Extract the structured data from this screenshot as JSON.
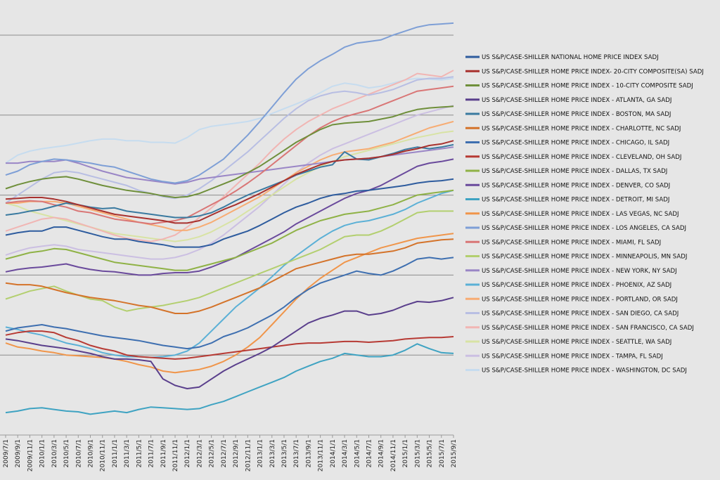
{
  "chart_data": {
    "type": "line",
    "title": "",
    "xlabel": "",
    "ylabel": "",
    "grid": true,
    "legend_placement": "right",
    "x_tick_labels": [
      "2009/7/1",
      "2009/9/1",
      "2009/11/1",
      "2010/1/1",
      "2010/3/1",
      "2010/5/1",
      "2010/7/1",
      "2010/9/1",
      "2010/11/1",
      "2011/1/1",
      "2011/3/1",
      "2011/5/1",
      "2011/7/1",
      "2011/9/1",
      "2011/11/1",
      "2012/1/1",
      "2012/3/1",
      "2012/5/1",
      "2012/7/1",
      "2012/9/1",
      "2012/11/1",
      "2013/1/1",
      "2013/3/1",
      "2013/5/1",
      "2013/7/1",
      "2013/9/1",
      "2013/11/1",
      "2014/1/1",
      "2014/3/1",
      "2014/5/1",
      "2014/7/1",
      "2014/9/1",
      "2014/11/1",
      "2015/1/1",
      "2015/3/1",
      "2015/5/1",
      "2015/7/1",
      "2015/9/1"
    ],
    "ylim": [
      0,
      5
    ],
    "y_gridlines": [
      0,
      1,
      2,
      3,
      4,
      5
    ],
    "series": [
      {
        "name": "US S&P/CASE-SHILLER NATIONAL HOME PRICE INDEX SADJ",
        "color": "#2e5c9e",
        "values": [
          2.5,
          2.53,
          2.55,
          2.55,
          2.6,
          2.6,
          2.56,
          2.52,
          2.48,
          2.45,
          2.45,
          2.42,
          2.4,
          2.38,
          2.35,
          2.35,
          2.35,
          2.38,
          2.45,
          2.5,
          2.55,
          2.62,
          2.7,
          2.78,
          2.85,
          2.9,
          2.96,
          3.0,
          3.02,
          3.05,
          3.06,
          3.08,
          3.1,
          3.12,
          3.15,
          3.17,
          3.18,
          3.2
        ]
      },
      {
        "name": "US S&P/CASE-SHILLER HOME PRICE INDEX- 20-CITY COMPOSITE(SA) SADJ",
        "color": "#a8312e",
        "values": [
          2.95,
          2.96,
          2.97,
          2.97,
          2.95,
          2.92,
          2.88,
          2.84,
          2.8,
          2.76,
          2.74,
          2.72,
          2.7,
          2.68,
          2.65,
          2.65,
          2.68,
          2.75,
          2.82,
          2.88,
          2.95,
          3.02,
          3.1,
          3.18,
          3.26,
          3.32,
          3.38,
          3.42,
          3.44,
          3.45,
          3.46,
          3.48,
          3.51,
          3.55,
          3.58,
          3.62,
          3.64,
          3.68
        ]
      },
      {
        "name": "US S&P/CASE-SHILLER HOME PRICE INDEX - 10-CITY COMPOSITE SADJ",
        "color": "#6f8f3b",
        "values": [
          3.08,
          3.13,
          3.17,
          3.2,
          3.22,
          3.23,
          3.2,
          3.16,
          3.12,
          3.09,
          3.06,
          3.04,
          3.02,
          2.99,
          2.97,
          2.98,
          3.02,
          3.08,
          3.14,
          3.2,
          3.28,
          3.36,
          3.46,
          3.56,
          3.66,
          3.74,
          3.82,
          3.88,
          3.9,
          3.91,
          3.92,
          3.95,
          3.98,
          4.03,
          4.07,
          4.09,
          4.1,
          4.11
        ]
      },
      {
        "name": "US S&P/CASE-SHILLER HOME PRICE INDEX - ATLANTA, GA SADJ",
        "color": "#5a3f8c",
        "values": [
          1.2,
          1.18,
          1.15,
          1.12,
          1.1,
          1.08,
          1.05,
          1.02,
          0.98,
          0.95,
          0.95,
          0.94,
          0.92,
          0.7,
          0.62,
          0.58,
          0.6,
          0.7,
          0.8,
          0.88,
          0.95,
          1.02,
          1.1,
          1.2,
          1.3,
          1.4,
          1.46,
          1.5,
          1.55,
          1.55,
          1.5,
          1.52,
          1.56,
          1.62,
          1.67,
          1.66,
          1.68,
          1.72
        ]
      },
      {
        "name": "US S&P/CASE-SHILLER HOME PRICE INDEX - BOSTON, MA SADJ",
        "color": "#3a7aa0",
        "values": [
          2.75,
          2.77,
          2.8,
          2.82,
          2.86,
          2.9,
          2.88,
          2.85,
          2.83,
          2.84,
          2.8,
          2.78,
          2.76,
          2.74,
          2.72,
          2.72,
          2.74,
          2.78,
          2.85,
          2.93,
          3.0,
          3.06,
          3.12,
          3.18,
          3.25,
          3.3,
          3.35,
          3.38,
          3.54,
          3.45,
          3.44,
          3.48,
          3.52,
          3.57,
          3.6,
          3.58,
          3.6,
          3.63
        ]
      },
      {
        "name": "US S&P/CASE-SHILLER HOME PRICE INDEX - CHARLOTTE, NC SADJ",
        "color": "#d4732a",
        "values": [
          1.9,
          1.88,
          1.88,
          1.86,
          1.82,
          1.78,
          1.75,
          1.72,
          1.7,
          1.68,
          1.65,
          1.62,
          1.6,
          1.56,
          1.52,
          1.52,
          1.55,
          1.6,
          1.66,
          1.72,
          1.78,
          1.84,
          1.92,
          2.0,
          2.08,
          2.12,
          2.16,
          2.2,
          2.24,
          2.26,
          2.26,
          2.28,
          2.3,
          2.34,
          2.4,
          2.42,
          2.44,
          2.45
        ]
      },
      {
        "name": "US S&P/CASE-SHILLER HOME PRICE INDEX - CHICAGO, IL SADJ",
        "color": "#3e6fb0",
        "values": [
          1.3,
          1.34,
          1.36,
          1.38,
          1.35,
          1.33,
          1.3,
          1.27,
          1.24,
          1.22,
          1.2,
          1.18,
          1.15,
          1.12,
          1.1,
          1.08,
          1.1,
          1.15,
          1.23,
          1.28,
          1.34,
          1.42,
          1.5,
          1.6,
          1.72,
          1.82,
          1.9,
          1.95,
          2.0,
          2.05,
          2.02,
          2.0,
          2.05,
          2.12,
          2.2,
          2.22,
          2.2,
          2.22
        ]
      },
      {
        "name": "US S&P/CASE-SHILLER HOME PRICE INDEX - CLEVELAND, OH SADJ",
        "color": "#b73a34",
        "values": [
          1.25,
          1.28,
          1.3,
          1.3,
          1.28,
          1.22,
          1.18,
          1.12,
          1.08,
          1.05,
          1.0,
          0.98,
          0.97,
          0.96,
          0.95,
          0.96,
          0.98,
          1.0,
          1.02,
          1.04,
          1.06,
          1.08,
          1.1,
          1.12,
          1.14,
          1.15,
          1.15,
          1.16,
          1.17,
          1.17,
          1.16,
          1.17,
          1.18,
          1.2,
          1.21,
          1.22,
          1.22,
          1.23
        ]
      },
      {
        "name": "US S&P/CASE-SHILLER HOME PRICE INDEX - DALLAS, TX SADJ",
        "color": "#8fb246",
        "values": [
          2.2,
          2.24,
          2.28,
          2.3,
          2.33,
          2.32,
          2.28,
          2.24,
          2.2,
          2.16,
          2.14,
          2.12,
          2.1,
          2.08,
          2.06,
          2.06,
          2.1,
          2.14,
          2.18,
          2.22,
          2.28,
          2.34,
          2.4,
          2.48,
          2.56,
          2.62,
          2.68,
          2.72,
          2.76,
          2.78,
          2.8,
          2.84,
          2.88,
          2.94,
          3.0,
          3.02,
          3.04,
          3.06
        ]
      },
      {
        "name": "US S&P/CASE-SHILLER HOME PRICE INDEX - DENVER, CO SADJ",
        "color": "#6a4a9c",
        "values": [
          2.04,
          2.07,
          2.09,
          2.1,
          2.12,
          2.14,
          2.1,
          2.07,
          2.05,
          2.04,
          2.02,
          2.0,
          2.0,
          2.02,
          2.03,
          2.03,
          2.05,
          2.1,
          2.16,
          2.22,
          2.3,
          2.38,
          2.46,
          2.54,
          2.64,
          2.72,
          2.8,
          2.88,
          2.96,
          3.02,
          3.06,
          3.12,
          3.2,
          3.28,
          3.36,
          3.4,
          3.42,
          3.45
        ]
      },
      {
        "name": "US S&P/CASE-SHILLER HOME PRICE INDEX - DETROIT, MI SADJ",
        "color": "#3fa3c2",
        "values": [
          0.28,
          0.3,
          0.33,
          0.34,
          0.32,
          0.3,
          0.29,
          0.26,
          0.28,
          0.3,
          0.28,
          0.32,
          0.35,
          0.34,
          0.33,
          0.32,
          0.33,
          0.38,
          0.42,
          0.48,
          0.54,
          0.6,
          0.66,
          0.72,
          0.8,
          0.86,
          0.92,
          0.96,
          1.02,
          1.0,
          0.98,
          0.98,
          1.0,
          1.06,
          1.14,
          1.08,
          1.03,
          1.02
        ]
      },
      {
        "name": "US S&P/CASE-SHILLER HOME PRICE INDEX - LAS VEGAS, NC SADJ",
        "color": "#f0954a",
        "values": [
          1.15,
          1.1,
          1.08,
          1.05,
          1.03,
          1.0,
          0.99,
          0.98,
          0.97,
          0.95,
          0.92,
          0.88,
          0.85,
          0.8,
          0.78,
          0.8,
          0.82,
          0.86,
          0.92,
          1.0,
          1.1,
          1.22,
          1.38,
          1.54,
          1.7,
          1.84,
          1.96,
          2.06,
          2.16,
          2.22,
          2.28,
          2.34,
          2.38,
          2.42,
          2.46,
          2.48,
          2.5,
          2.52
        ]
      },
      {
        "name": "US S&P/CASE-SHILLER HOME PRICE INDEX - LOS ANGELES, CA SADJ",
        "color": "#7e9fd6",
        "values": [
          3.25,
          3.3,
          3.38,
          3.42,
          3.45,
          3.44,
          3.42,
          3.4,
          3.37,
          3.35,
          3.3,
          3.25,
          3.2,
          3.17,
          3.15,
          3.18,
          3.25,
          3.35,
          3.45,
          3.6,
          3.75,
          3.92,
          4.1,
          4.28,
          4.45,
          4.58,
          4.68,
          4.76,
          4.85,
          4.9,
          4.92,
          4.94,
          5.0,
          5.05,
          5.1,
          5.13,
          5.14,
          5.15
        ]
      },
      {
        "name": "US S&P/CASE-SHILLER HOME PRICE INDEX - MIAMI, FL SADJ",
        "color": "#d97676",
        "values": [
          2.9,
          2.92,
          2.93,
          2.92,
          2.88,
          2.85,
          2.8,
          2.78,
          2.74,
          2.7,
          2.68,
          2.66,
          2.64,
          2.66,
          2.68,
          2.72,
          2.8,
          2.88,
          2.96,
          3.05,
          3.15,
          3.26,
          3.38,
          3.5,
          3.62,
          3.74,
          3.84,
          3.92,
          3.98,
          4.02,
          4.06,
          4.12,
          4.18,
          4.24,
          4.3,
          4.32,
          4.34,
          4.36
        ]
      },
      {
        "name": "US S&P/CASE-SHILLER HOME PRICE INDEX - MINNEAPOLIS, MN SADJ",
        "color": "#b3cf6f",
        "values": [
          1.7,
          1.75,
          1.8,
          1.83,
          1.86,
          1.8,
          1.75,
          1.7,
          1.68,
          1.6,
          1.55,
          1.58,
          1.6,
          1.62,
          1.65,
          1.68,
          1.72,
          1.78,
          1.84,
          1.9,
          1.96,
          2.02,
          2.08,
          2.14,
          2.2,
          2.26,
          2.32,
          2.4,
          2.48,
          2.5,
          2.5,
          2.55,
          2.62,
          2.7,
          2.78,
          2.8,
          2.8,
          2.8
        ]
      },
      {
        "name": "US S&P/CASE-SHILLER HOME PRICE INDEX - NEW YORK, NY SADJ",
        "color": "#9a86c6",
        "values": [
          3.4,
          3.4,
          3.42,
          3.42,
          3.42,
          3.44,
          3.4,
          3.35,
          3.3,
          3.26,
          3.22,
          3.2,
          3.18,
          3.16,
          3.14,
          3.16,
          3.2,
          3.22,
          3.24,
          3.26,
          3.28,
          3.3,
          3.32,
          3.34,
          3.36,
          3.38,
          3.4,
          3.42,
          3.44,
          3.45,
          3.46,
          3.48,
          3.5,
          3.52,
          3.54,
          3.56,
          3.58,
          3.6
        ]
      },
      {
        "name": "US S&P/CASE-SHILLER HOME PRICE INDEX - PHOENIX, AZ SADJ",
        "color": "#5bb0d6",
        "values": [
          1.35,
          1.32,
          1.28,
          1.25,
          1.2,
          1.15,
          1.12,
          1.08,
          1.03,
          1.0,
          0.98,
          0.98,
          0.97,
          0.98,
          1.0,
          1.05,
          1.15,
          1.3,
          1.45,
          1.6,
          1.72,
          1.84,
          1.98,
          2.12,
          2.24,
          2.35,
          2.46,
          2.55,
          2.62,
          2.66,
          2.68,
          2.72,
          2.76,
          2.82,
          2.9,
          2.96,
          3.02,
          3.06
        ]
      },
      {
        "name": "US S&P/CASE-SHILLER HOME PRICE INDEX - PORTLAND, OR SADJ",
        "color": "#f7ac73",
        "values": [
          2.9,
          2.9,
          2.92,
          2.92,
          2.92,
          2.9,
          2.86,
          2.82,
          2.78,
          2.74,
          2.7,
          2.66,
          2.63,
          2.6,
          2.56,
          2.56,
          2.6,
          2.66,
          2.74,
          2.82,
          2.9,
          2.98,
          3.08,
          3.18,
          3.28,
          3.36,
          3.44,
          3.5,
          3.54,
          3.56,
          3.58,
          3.62,
          3.66,
          3.72,
          3.78,
          3.84,
          3.88,
          3.92
        ]
      },
      {
        "name": "US S&P/CASE-SHILLER HOME PRICE INDEX - SAN DIEGO, CA SADJ",
        "color": "#b8bee3",
        "values": [
          2.9,
          3.0,
          3.1,
          3.2,
          3.28,
          3.3,
          3.28,
          3.24,
          3.2,
          3.16,
          3.12,
          3.06,
          3.02,
          2.98,
          2.96,
          3.0,
          3.08,
          3.18,
          3.3,
          3.42,
          3.54,
          3.68,
          3.82,
          3.96,
          4.08,
          4.18,
          4.24,
          4.28,
          4.3,
          4.28,
          4.25,
          4.28,
          4.32,
          4.38,
          4.44,
          4.46,
          4.46,
          4.48
        ]
      },
      {
        "name": "US S&P/CASE-SHILLER HOME PRICE INDEX - SAN FRANCISCO, CA SADJ",
        "color": "#f1b5b3",
        "values": [
          2.55,
          2.6,
          2.65,
          2.7,
          2.72,
          2.7,
          2.65,
          2.6,
          2.55,
          2.5,
          2.46,
          2.44,
          2.42,
          2.45,
          2.5,
          2.6,
          2.72,
          2.84,
          2.98,
          3.12,
          3.26,
          3.4,
          3.56,
          3.7,
          3.82,
          3.92,
          4.0,
          4.08,
          4.14,
          4.2,
          4.26,
          4.32,
          4.38,
          4.44,
          4.52,
          4.5,
          4.48,
          4.56
        ]
      },
      {
        "name": "US S&P/CASE-SHILLER HOME PRICE INDEX - SEATTLE, WA SADJ",
        "color": "#d8e3a4",
        "values": [
          2.9,
          2.86,
          2.8,
          2.76,
          2.72,
          2.68,
          2.64,
          2.6,
          2.56,
          2.52,
          2.5,
          2.48,
          2.46,
          2.44,
          2.42,
          2.44,
          2.48,
          2.54,
          2.62,
          2.7,
          2.8,
          2.9,
          3.0,
          3.1,
          3.2,
          3.28,
          3.36,
          3.42,
          3.48,
          3.52,
          3.56,
          3.6,
          3.64,
          3.68,
          3.72,
          3.75,
          3.78,
          3.8
        ]
      },
      {
        "name": "US S&P/CASE-SHILLER HOME PRICE INDEX - TAMPA, FL SADJ",
        "color": "#cbbfe2",
        "values": [
          2.25,
          2.3,
          2.34,
          2.36,
          2.38,
          2.36,
          2.32,
          2.3,
          2.28,
          2.26,
          2.24,
          2.22,
          2.2,
          2.2,
          2.22,
          2.26,
          2.32,
          2.4,
          2.5,
          2.62,
          2.74,
          2.86,
          3.0,
          3.14,
          3.28,
          3.4,
          3.5,
          3.58,
          3.64,
          3.7,
          3.76,
          3.82,
          3.88,
          3.94,
          4.0,
          4.04,
          4.08,
          4.12
        ]
      },
      {
        "name": "US S&P/CASE-SHILLER HOME PRICE INDEX - WASHINGTON, DC SADJ",
        "color": "#c6dcef",
        "values": [
          3.4,
          3.5,
          3.55,
          3.58,
          3.6,
          3.62,
          3.65,
          3.68,
          3.7,
          3.7,
          3.68,
          3.68,
          3.66,
          3.66,
          3.65,
          3.72,
          3.82,
          3.86,
          3.88,
          3.9,
          3.92,
          3.96,
          4.02,
          4.08,
          4.14,
          4.2,
          4.28,
          4.36,
          4.4,
          4.38,
          4.34,
          4.36,
          4.4,
          4.44,
          4.46,
          4.45,
          4.44,
          4.46
        ]
      }
    ]
  }
}
